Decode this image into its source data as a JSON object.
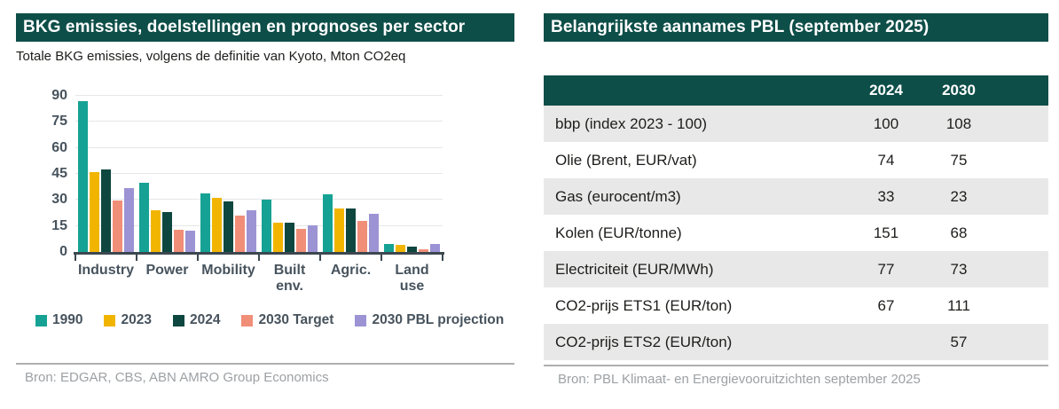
{
  "colors": {
    "header_bg": "#0E4E48",
    "header_text": "#FFFFFF",
    "axis": "#3C4850",
    "axis_label": "#47535D",
    "gridline": "#E5E6E8",
    "table_alt_row": "#E8E8E8",
    "table_text": "#1D1D1B",
    "source_text": "#9DA1A4",
    "divider": "#AFAFAF"
  },
  "left_panel": {
    "title": "BKG emissies, doelstellingen en prognoses per sector",
    "subtitle": "Totale BKG emissies, volgens de definitie van Kyoto, Mton CO2eq",
    "source": "Bron: EDGAR, CBS, ABN AMRO Group Economics"
  },
  "chart_data": {
    "type": "bar",
    "title": "BKG emissies, doelstellingen en prognoses per sector",
    "subtitle": "Totale BKG emissies, volgens de definitie van Kyoto, Mton CO2eq",
    "unit": "Mton CO2eq",
    "categories": [
      "Industry",
      "Power",
      "Mobility",
      "Built env.",
      "Agric.",
      "Land use"
    ],
    "category_labels": [
      "Industry",
      "Power",
      "Mobility",
      "Built\nenv.",
      "Agric.",
      "Land use"
    ],
    "series": [
      {
        "name": "1990",
        "color": "#15A294",
        "values": [
          87,
          40,
          34,
          30,
          33,
          4.5
        ]
      },
      {
        "name": "2023",
        "color": "#F1B500",
        "values": [
          46,
          24,
          31,
          17,
          25,
          4
        ]
      },
      {
        "name": "2024",
        "color": "#0E473F",
        "values": [
          47.5,
          23,
          29,
          17,
          25,
          3
        ]
      },
      {
        "name": "2030 Target",
        "color": "#F18E78",
        "values": [
          29.5,
          13,
          21,
          13.5,
          18,
          1.5
        ]
      },
      {
        "name": "2030 PBL projection",
        "color": "#9C93D4",
        "values": [
          37,
          12.5,
          24,
          15.5,
          22,
          4.5
        ]
      }
    ],
    "ylim": [
      0,
      90
    ],
    "yticks": [
      0,
      15,
      30,
      45,
      60,
      75,
      90
    ],
    "grid": "horizontal",
    "legend_position": "bottom"
  },
  "right_panel": {
    "title": "Belangrijkste aannames PBL (september 2025)",
    "table": {
      "col_2024": "2024",
      "col_2030": "2030",
      "rows": [
        {
          "label": "bbp (index 2023 - 100)",
          "y2024": "100",
          "y2030": "108"
        },
        {
          "label": "Olie (Brent, EUR/vat)",
          "y2024": "74",
          "y2030": "75"
        },
        {
          "label": "Gas (eurocent/m3)",
          "y2024": "33",
          "y2030": "23"
        },
        {
          "label": "Kolen (EUR/tonne)",
          "y2024": "151",
          "y2030": "68"
        },
        {
          "label": "Electriciteit (EUR/MWh)",
          "y2024": "77",
          "y2030": "73"
        },
        {
          "label": "CO2-prijs ETS1 (EUR/ton)",
          "y2024": "67",
          "y2030": "111"
        },
        {
          "label": "CO2-prijs ETS2 (EUR/ton)",
          "y2024": "",
          "y2030": "57"
        }
      ]
    },
    "source": "Bron: PBL Klimaat- en Energievooruitzichten september 2025"
  }
}
